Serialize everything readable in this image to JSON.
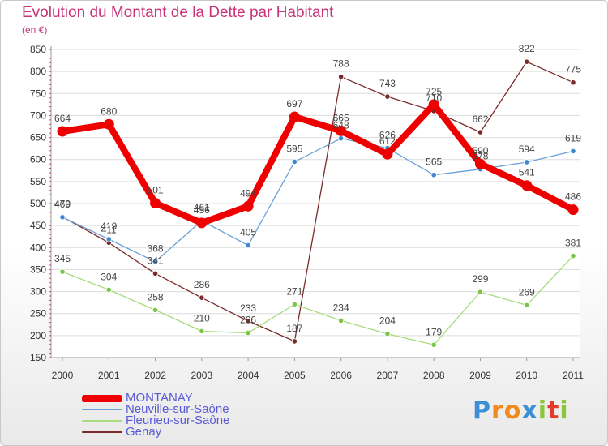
{
  "chart_data": {
    "type": "line",
    "title": "Evolution du Montant de la Dette par Habitant",
    "subtitle": "(en €)",
    "x": [
      "2000",
      "2001",
      "2002",
      "2003",
      "2004",
      "2005",
      "2006",
      "2007",
      "2008",
      "2009",
      "2010",
      "2011"
    ],
    "ylim": [
      150,
      850
    ],
    "yticks": [
      150,
      200,
      250,
      300,
      350,
      400,
      450,
      500,
      550,
      600,
      650,
      700,
      750,
      800,
      850
    ],
    "grid": "horizontal",
    "legend_position": "bottom-left",
    "series": [
      {
        "name": "Genay",
        "color": "#7a2a2a",
        "width": 1.3,
        "marker": 3.2,
        "values": [
          470,
          411,
          341,
          286,
          233,
          187,
          788,
          743,
          710,
          662,
          822,
          775
        ]
      },
      {
        "name": "Fleurieu-sur-Saône",
        "color": "#a6dc7c",
        "marker_color": "#7bc64a",
        "width": 1.3,
        "marker": 3.2,
        "values": [
          345,
          304,
          258,
          210,
          206,
          271,
          234,
          204,
          179,
          299,
          269,
          381
        ]
      },
      {
        "name": "Neuville-sur-Saône",
        "color": "#6aa0d8",
        "marker_color": "#3f86d0",
        "width": 1.3,
        "marker": 3.2,
        "values": [
          469,
          419,
          368,
          461,
          405,
          595,
          648,
          626,
          565,
          578,
          594,
          619
        ]
      },
      {
        "name": "MONTANAY",
        "color": "#ee0000",
        "width": 8,
        "marker": 6.5,
        "values": [
          664,
          680,
          501,
          456,
          494,
          697,
          665,
          612,
          725,
          590,
          541,
          486
        ]
      }
    ],
    "legend_order": [
      "MONTANAY",
      "Neuville-sur-Saône",
      "Fleurieu-sur-Saône",
      "Genay"
    ]
  },
  "logo": {
    "letters": [
      "P",
      "r",
      "o",
      "x",
      "i",
      "t",
      "i"
    ],
    "colors": [
      "#3a8fd6",
      "#f08a1c",
      "#f08a1c",
      "#3a8fd6",
      "#8cc63f",
      "#e33a2c",
      "#8cc63f"
    ]
  }
}
